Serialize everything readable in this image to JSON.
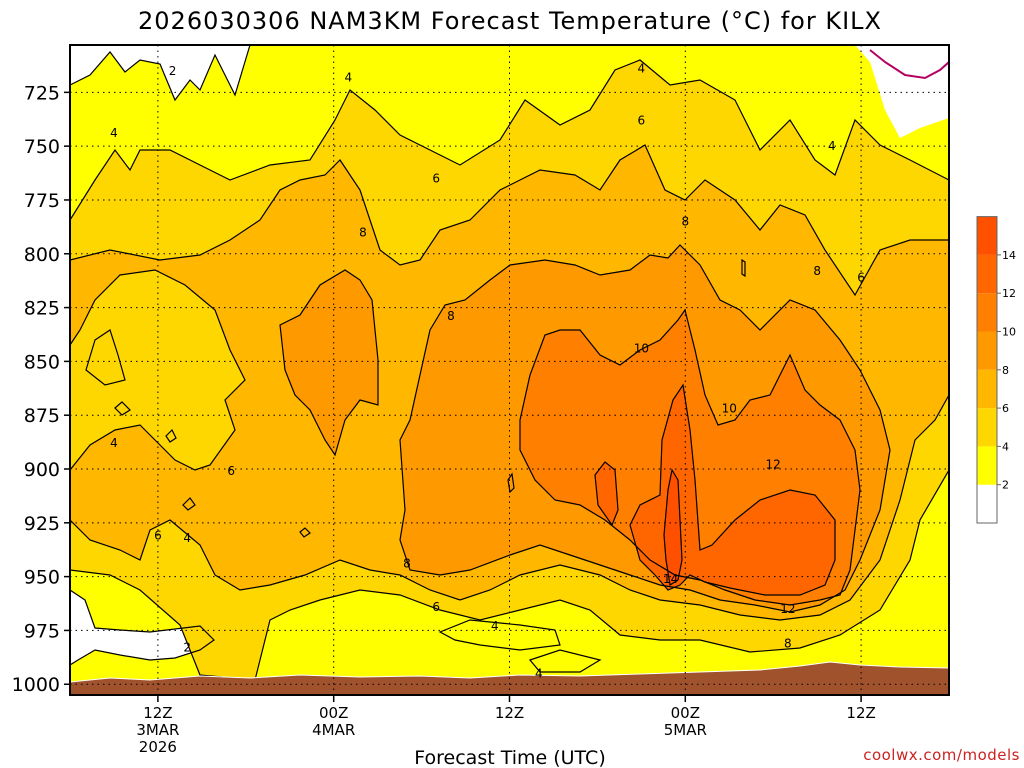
{
  "chart_data": {
    "type": "heatmap",
    "title": "2026030306 NAM3KM Forecast Temperature (°C) for KILX",
    "xlabel": "Forecast Time (UTC)",
    "credit": "coolwx.com/models",
    "y_ticks": [
      "725",
      "750",
      "775",
      "800",
      "825",
      "850",
      "875",
      "900",
      "925",
      "950",
      "975",
      "1000"
    ],
    "y_values": [
      725,
      750,
      775,
      800,
      825,
      850,
      875,
      900,
      925,
      950,
      975,
      1000
    ],
    "x_ticks": [
      {
        "hours": 6,
        "lines": [
          "12Z",
          "3MAR",
          "2026"
        ]
      },
      {
        "hours": 18,
        "lines": [
          "00Z",
          "4MAR"
        ]
      },
      {
        "hours": 30,
        "lines": [
          "12Z"
        ]
      },
      {
        "hours": 42,
        "lines": [
          "00Z",
          "5MAR"
        ]
      },
      {
        "hours": 54,
        "lines": [
          "12Z"
        ]
      }
    ],
    "x_range_hours": [
      0,
      60
    ],
    "y_range_hpa": [
      703,
      1005
    ],
    "grid": true,
    "legend": "right",
    "legend_levels": [
      2,
      4,
      6,
      8,
      10,
      12,
      14
    ],
    "legend_labels": [
      "2",
      "4",
      "6",
      "8",
      "10",
      "12",
      "14"
    ],
    "colors": {
      "below2": "#ffffff",
      "2to4": "#ffff00",
      "4to6": "#ffd700",
      "6to8": "#ffb700",
      "8to10": "#ff9900",
      "10to12": "#ff7f00",
      "12to14": "#ff6600",
      "above14": "#ff5000",
      "ground": "#a0522d",
      "magenta": "#b40060"
    },
    "contour_labels": [
      {
        "value": "2",
        "hours": 7,
        "hpa": 715
      },
      {
        "value": "4",
        "hours": 19,
        "hpa": 718
      },
      {
        "value": "4",
        "hours": 39,
        "hpa": 714
      },
      {
        "value": "4",
        "hours": 3,
        "hpa": 744
      },
      {
        "value": "4",
        "hours": 52,
        "hpa": 750
      },
      {
        "value": "6",
        "hours": 39,
        "hpa": 738
      },
      {
        "value": "6",
        "hours": 25,
        "hpa": 765
      },
      {
        "value": "6",
        "hours": 54,
        "hpa": 811
      },
      {
        "value": "8",
        "hours": 20,
        "hpa": 790
      },
      {
        "value": "8",
        "hours": 42,
        "hpa": 785
      },
      {
        "value": "8",
        "hours": 51,
        "hpa": 808
      },
      {
        "value": "8",
        "hours": 26,
        "hpa": 829
      },
      {
        "value": "10",
        "hours": 39,
        "hpa": 844
      },
      {
        "value": "10",
        "hours": 45,
        "hpa": 872
      },
      {
        "value": "4",
        "hours": 3,
        "hpa": 888
      },
      {
        "value": "6",
        "hours": 11,
        "hpa": 901
      },
      {
        "value": "12",
        "hours": 48,
        "hpa": 898
      },
      {
        "value": "6",
        "hours": 6,
        "hpa": 931
      },
      {
        "value": "4",
        "hours": 8,
        "hpa": 932
      },
      {
        "value": "8",
        "hours": 23,
        "hpa": 944
      },
      {
        "value": "14",
        "hours": 41,
        "hpa": 951
      },
      {
        "value": "6",
        "hours": 25,
        "hpa": 964
      },
      {
        "value": "12",
        "hours": 49,
        "hpa": 965
      },
      {
        "value": "4",
        "hours": 29,
        "hpa": 973
      },
      {
        "value": "2",
        "hours": 8,
        "hpa": 983
      },
      {
        "value": "8",
        "hours": 49,
        "hpa": 981
      },
      {
        "value": "4",
        "hours": 32,
        "hpa": 995
      }
    ]
  }
}
